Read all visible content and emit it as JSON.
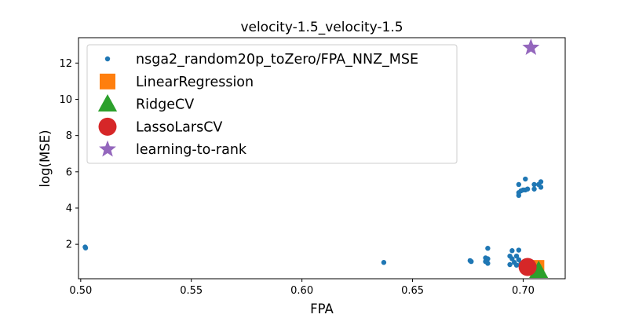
{
  "chart_data": {
    "type": "scatter",
    "title": "velocity-1.5_velocity-1.5",
    "xlabel": "FPA",
    "ylabel": "log(MSE)",
    "xlim": [
      0.499,
      0.719
    ],
    "ylim": [
      0.1,
      13.4
    ],
    "xticks": [
      "0.50",
      "0.55",
      "0.60",
      "0.65",
      "0.70"
    ],
    "yticks": [
      "2",
      "4",
      "6",
      "8",
      "10",
      "12"
    ],
    "grid": false,
    "legend_position": "upper-left",
    "series": [
      {
        "name": "nsga2_random20p_toZero/FPA_NNZ_MSE",
        "marker": "circle",
        "color": "#1f77b4",
        "points": [
          [
            0.502,
            1.85
          ],
          [
            0.5022,
            1.8
          ],
          [
            0.637,
            1.0
          ],
          [
            0.676,
            1.1
          ],
          [
            0.6765,
            1.05
          ],
          [
            0.684,
            1.78
          ],
          [
            0.683,
            1.25
          ],
          [
            0.684,
            1.2
          ],
          [
            0.683,
            1.05
          ],
          [
            0.684,
            0.95
          ],
          [
            0.695,
            1.65
          ],
          [
            0.698,
            1.68
          ],
          [
            0.694,
            1.35
          ],
          [
            0.697,
            1.35
          ],
          [
            0.695,
            1.2
          ],
          [
            0.698,
            1.15
          ],
          [
            0.696,
            1.0
          ],
          [
            0.694,
            0.88
          ],
          [
            0.697,
            0.85
          ],
          [
            0.699,
            0.95
          ],
          [
            0.7,
            0.9
          ],
          [
            0.702,
            0.85
          ],
          [
            0.698,
            5.3
          ],
          [
            0.7,
            5.0
          ],
          [
            0.701,
            5.6
          ],
          [
            0.702,
            5.05
          ],
          [
            0.699,
            4.95
          ],
          [
            0.698,
            4.7
          ],
          [
            0.705,
            5.3
          ],
          [
            0.705,
            5.05
          ],
          [
            0.707,
            5.3
          ],
          [
            0.708,
            5.45
          ],
          [
            0.708,
            5.15
          ],
          [
            0.698,
            4.85
          ],
          [
            0.701,
            5.0
          ]
        ]
      },
      {
        "name": "LinearRegression",
        "marker": "square",
        "color": "#ff7f0e",
        "points": [
          [
            0.706,
            0.7
          ]
        ]
      },
      {
        "name": "RidgeCV",
        "marker": "triangle",
        "color": "#2ca02c",
        "points": [
          [
            0.707,
            0.55
          ]
        ]
      },
      {
        "name": "LassoLarsCV",
        "marker": "big-circle",
        "color": "#d62728",
        "points": [
          [
            0.702,
            0.75
          ]
        ]
      },
      {
        "name": "learning-to-rank",
        "marker": "star",
        "color": "#9467bd",
        "points": [
          [
            0.7035,
            12.85
          ]
        ]
      }
    ]
  }
}
